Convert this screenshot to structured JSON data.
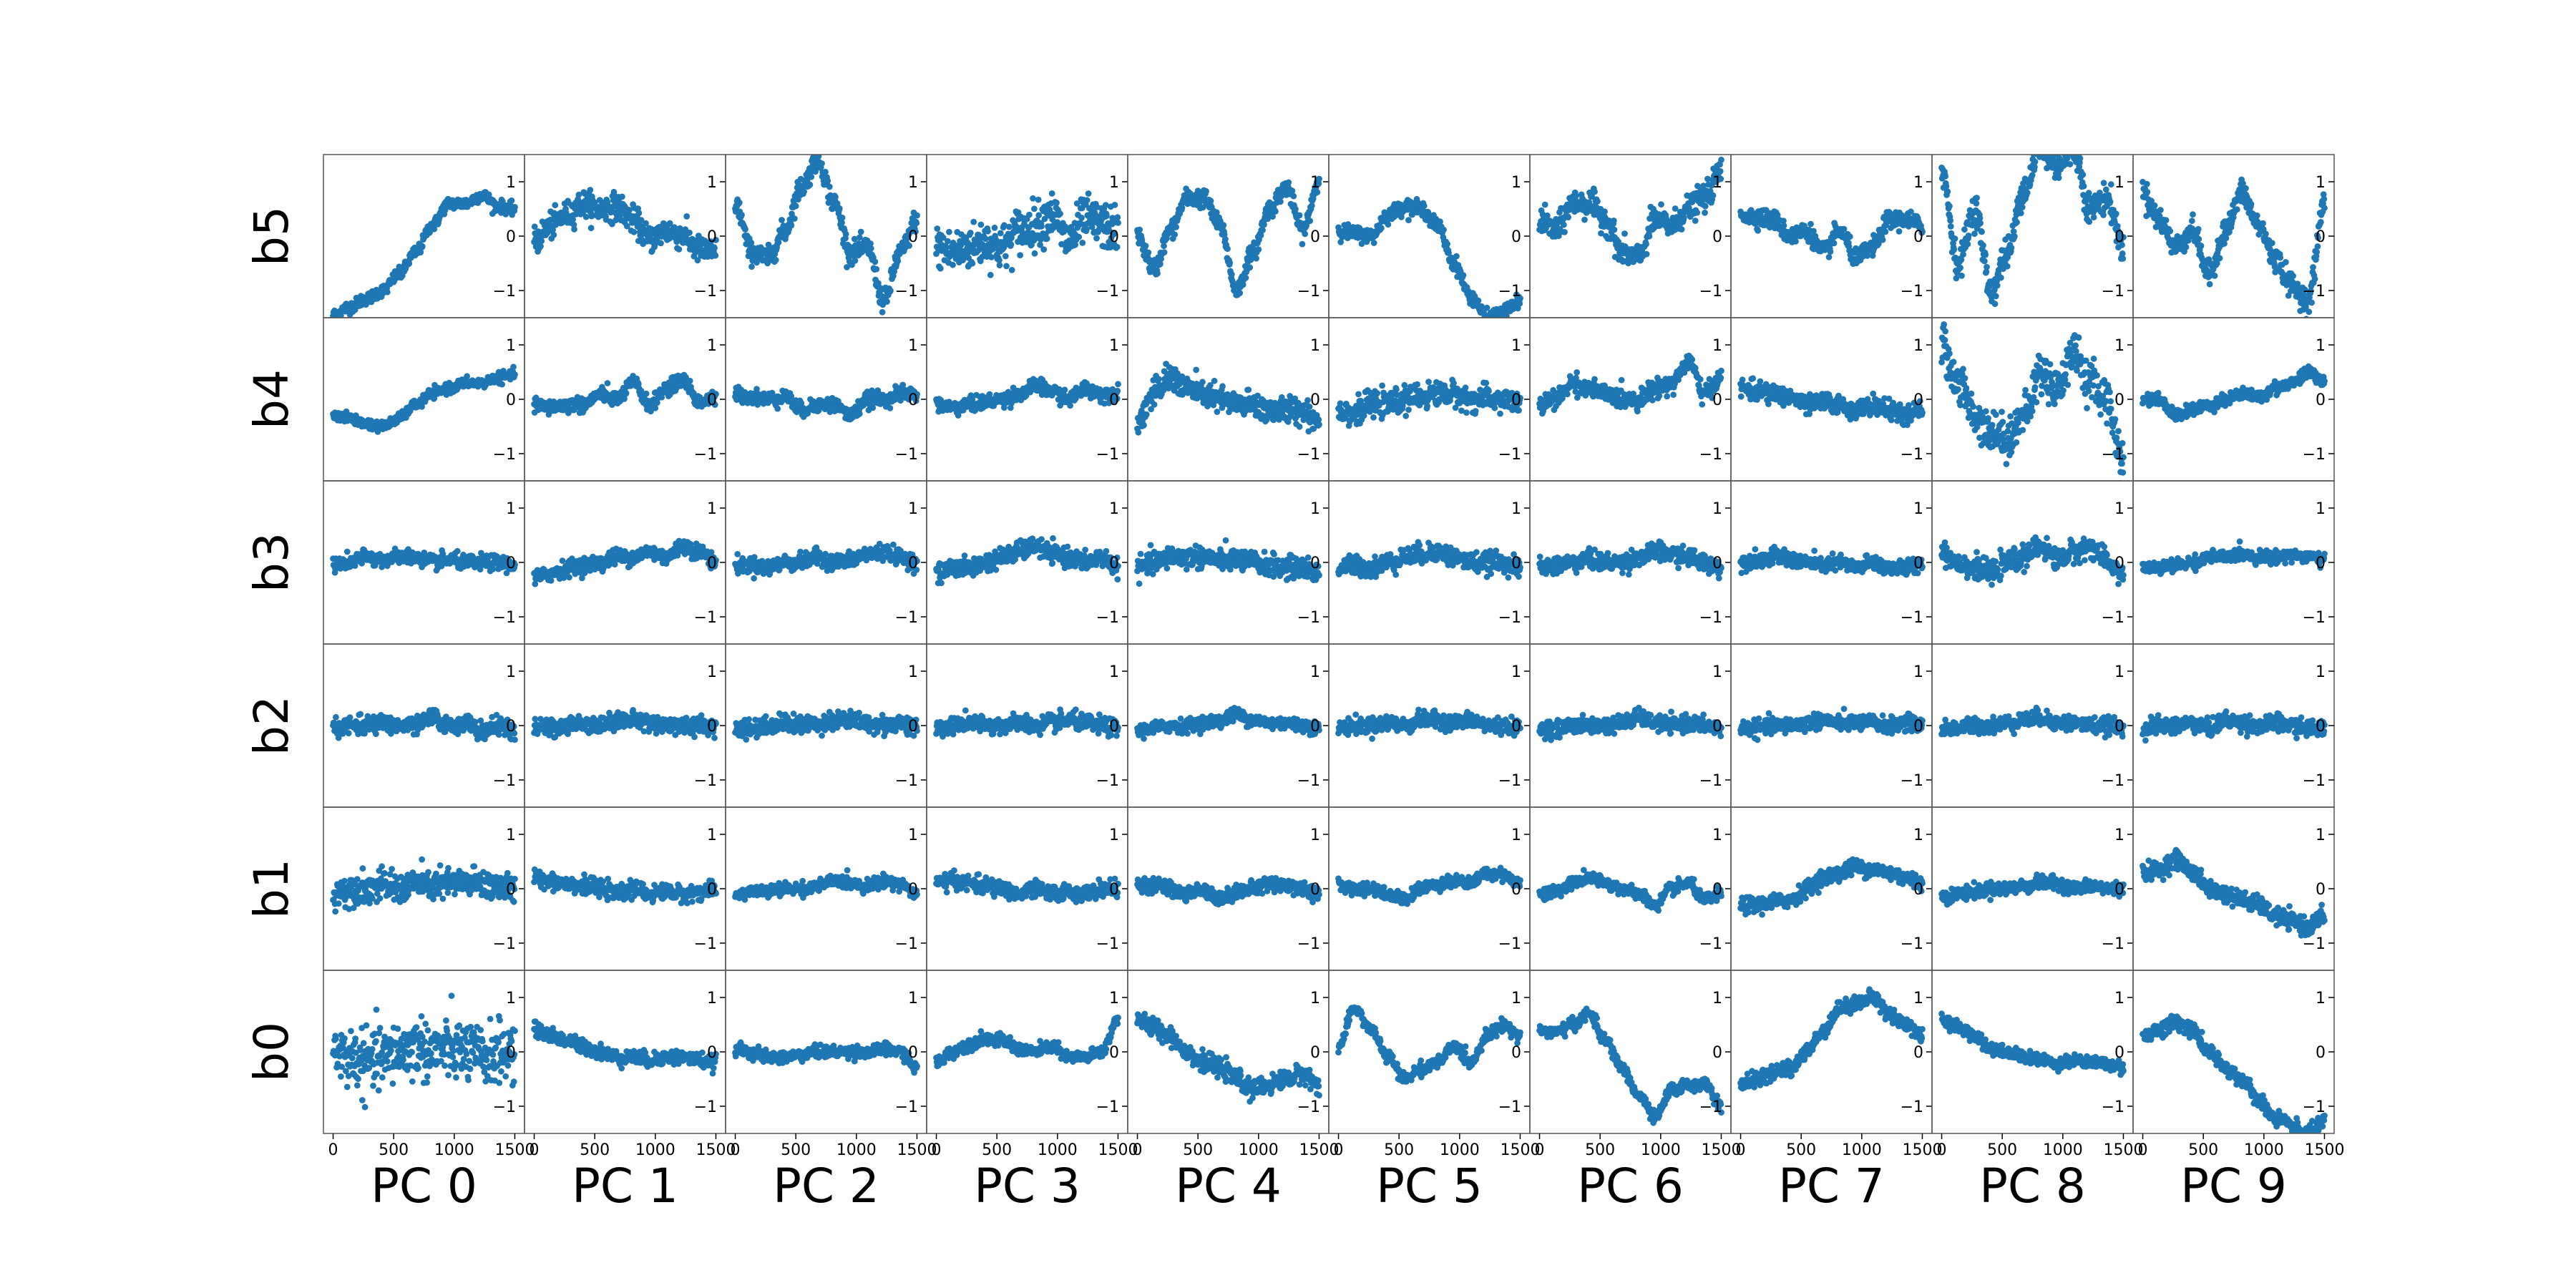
{
  "chart_data": {
    "type": "scatter",
    "layout": "grid of small-multiple scatter plots, 6 rows x 10 columns, shared axes",
    "rows": [
      "b5",
      "b4",
      "b3",
      "b2",
      "b1",
      "b0"
    ],
    "columns": [
      "PC 0",
      "PC 1",
      "PC 2",
      "PC 3",
      "PC 4",
      "PC 5",
      "PC 6",
      "PC 7",
      "PC 8",
      "PC 9"
    ],
    "xlim": [
      -80,
      1580
    ],
    "ylim": [
      -1.5,
      1.5
    ],
    "x_ticks": [
      0,
      500,
      1000,
      1500
    ],
    "x_tick_labels": [
      "0",
      "500",
      "1000",
      "1500"
    ],
    "y_ticks": [
      1,
      0,
      -1
    ],
    "y_tick_labels": [
      "1",
      "0",
      "−1"
    ],
    "points_per_panel": 400,
    "marker_color": "#1f77b4",
    "grid": false,
    "panels_note": "Each panel y(x) is approximated by the trend curves below (sampled at x = 0, 150, 300, ..., 1500) with the given scatter spread.",
    "panels": {
      "b5": [
        {
          "trend": [
            -1.45,
            -1.3,
            -1.15,
            -1.0,
            -0.7,
            -0.3,
            0.2,
            0.6,
            0.6,
            0.75,
            0.55,
            0.5
          ],
          "spread": 0.1
        },
        {
          "trend": [
            -0.1,
            0.2,
            0.4,
            0.6,
            0.5,
            0.55,
            0.3,
            -0.05,
            0.1,
            0.0,
            -0.25,
            -0.3
          ],
          "spread": 0.22
        },
        {
          "trend": [
            0.6,
            -0.3,
            -0.4,
            0.1,
            0.9,
            1.4,
            0.6,
            -0.3,
            -0.2,
            -1.2,
            -0.3,
            0.3
          ],
          "spread": 0.18
        },
        {
          "trend": [
            -0.2,
            -0.3,
            -0.2,
            -0.1,
            -0.2,
            0.1,
            0.2,
            0.4,
            -0.1,
            0.3,
            0.2,
            0.1
          ],
          "spread": 0.38
        },
        {
          "trend": [
            0.0,
            -0.6,
            0.1,
            0.7,
            0.7,
            0.2,
            -1.0,
            -0.3,
            0.5,
            0.9,
            0.1,
            1.0
          ],
          "spread": 0.15
        },
        {
          "trend": [
            0.1,
            0.05,
            0.0,
            0.4,
            0.55,
            0.5,
            0.2,
            -0.5,
            -1.1,
            -1.5,
            -1.4,
            -1.2
          ],
          "spread": 0.12
        },
        {
          "trend": [
            0.3,
            0.1,
            0.6,
            0.6,
            0.3,
            -0.3,
            -0.4,
            0.3,
            0.2,
            0.5,
            0.7,
            1.2
          ],
          "spread": 0.22
        },
        {
          "trend": [
            0.4,
            0.35,
            0.3,
            0.0,
            0.1,
            -0.3,
            0.1,
            -0.4,
            -0.2,
            0.3,
            0.3,
            0.2
          ],
          "spread": 0.15
        },
        {
          "trend": [
            1.2,
            -0.5,
            0.5,
            -1.0,
            -0.3,
            0.9,
            1.6,
            1.3,
            1.6,
            0.5,
            0.7,
            -0.2
          ],
          "spread": 0.25
        },
        {
          "trend": [
            0.8,
            0.3,
            -0.2,
            0.1,
            -0.7,
            0.1,
            0.8,
            0.2,
            -0.4,
            -0.9,
            -1.2,
            0.6
          ],
          "spread": 0.2
        }
      ],
      "b4": [
        {
          "trend": [
            -0.3,
            -0.35,
            -0.45,
            -0.5,
            -0.35,
            -0.1,
            0.1,
            0.2,
            0.3,
            0.3,
            0.4,
            0.45
          ],
          "spread": 0.08
        },
        {
          "trend": [
            -0.1,
            -0.15,
            -0.1,
            -0.1,
            0.1,
            0.0,
            0.3,
            -0.1,
            0.2,
            0.35,
            -0.05,
            0.0
          ],
          "spread": 0.12
        },
        {
          "trend": [
            0.1,
            0.05,
            0.0,
            0.05,
            -0.2,
            -0.1,
            -0.1,
            -0.3,
            0.0,
            0.0,
            0.1,
            0.1
          ],
          "spread": 0.12
        },
        {
          "trend": [
            -0.1,
            -0.15,
            -0.1,
            -0.05,
            0.0,
            0.1,
            0.25,
            0.15,
            0.0,
            0.2,
            0.1,
            0.1
          ],
          "spread": 0.12
        },
        {
          "trend": [
            -0.4,
            0.1,
            0.4,
            0.2,
            0.1,
            0.0,
            -0.1,
            -0.1,
            -0.2,
            -0.2,
            -0.2,
            -0.4
          ],
          "spread": 0.22
        },
        {
          "trend": [
            -0.2,
            -0.25,
            -0.1,
            -0.1,
            0.0,
            0.05,
            0.1,
            0.1,
            0.0,
            0.0,
            0.0,
            -0.1
          ],
          "spread": 0.2
        },
        {
          "trend": [
            -0.1,
            0.0,
            0.3,
            0.2,
            0.1,
            0.0,
            0.0,
            0.2,
            0.3,
            0.7,
            0.1,
            0.4
          ],
          "spread": 0.15
        },
        {
          "trend": [
            0.2,
            0.15,
            0.1,
            0.05,
            -0.1,
            -0.05,
            -0.1,
            -0.2,
            -0.1,
            -0.2,
            -0.3,
            -0.2
          ],
          "spread": 0.15
        },
        {
          "trend": [
            1.0,
            0.3,
            -0.3,
            -0.6,
            -0.7,
            -0.3,
            0.5,
            0.2,
            0.9,
            0.3,
            0.0,
            -1.2
          ],
          "spread": 0.35
        },
        {
          "trend": [
            0.0,
            0.0,
            -0.3,
            -0.2,
            -0.1,
            0.0,
            0.1,
            0.05,
            0.2,
            0.3,
            0.5,
            0.35
          ],
          "spread": 0.1
        }
      ],
      "b3": [
        {
          "trend": [
            -0.05,
            0.0,
            0.1,
            0.05,
            0.1,
            0.1,
            0.0,
            0.05,
            0.0,
            0.0,
            0.0,
            -0.05
          ],
          "spread": 0.12
        },
        {
          "trend": [
            -0.3,
            -0.2,
            -0.1,
            -0.05,
            0.0,
            0.1,
            0.1,
            0.2,
            0.1,
            0.3,
            0.2,
            0.0
          ],
          "spread": 0.13
        },
        {
          "trend": [
            -0.05,
            -0.05,
            -0.1,
            0.0,
            0.0,
            0.1,
            0.0,
            0.05,
            0.15,
            0.2,
            0.1,
            0.0
          ],
          "spread": 0.13
        },
        {
          "trend": [
            -0.2,
            -0.1,
            -0.1,
            0.0,
            0.1,
            0.2,
            0.3,
            0.15,
            0.1,
            0.0,
            0.1,
            -0.1
          ],
          "spread": 0.15
        },
        {
          "trend": [
            -0.1,
            0.0,
            0.1,
            0.1,
            0.1,
            0.05,
            0.05,
            0.0,
            -0.05,
            -0.1,
            -0.1,
            -0.2
          ],
          "spread": 0.18
        },
        {
          "trend": [
            -0.1,
            -0.05,
            -0.1,
            0.0,
            0.1,
            0.15,
            0.2,
            0.1,
            0.0,
            0.0,
            0.0,
            -0.1
          ],
          "spread": 0.16
        },
        {
          "trend": [
            -0.1,
            -0.05,
            0.0,
            0.05,
            0.0,
            0.0,
            0.1,
            0.2,
            0.15,
            0.1,
            0.0,
            -0.1
          ],
          "spread": 0.15
        },
        {
          "trend": [
            0.0,
            0.05,
            0.1,
            0.05,
            0.0,
            -0.05,
            0.0,
            -0.1,
            0.0,
            -0.1,
            -0.1,
            0.0
          ],
          "spread": 0.13
        },
        {
          "trend": [
            0.2,
            0.0,
            -0.1,
            -0.2,
            0.0,
            0.1,
            0.3,
            0.05,
            0.2,
            0.3,
            0.0,
            -0.2
          ],
          "spread": 0.18
        },
        {
          "trend": [
            -0.1,
            -0.1,
            -0.05,
            0.0,
            0.1,
            0.1,
            0.15,
            0.1,
            0.1,
            0.15,
            0.1,
            0.05
          ],
          "spread": 0.1
        }
      ],
      "b2": [
        {
          "trend": [
            -0.05,
            0.0,
            0.0,
            0.05,
            0.0,
            0.0,
            0.15,
            0.0,
            0.05,
            -0.1,
            0.0,
            -0.1
          ],
          "spread": 0.14
        },
        {
          "trend": [
            -0.05,
            -0.05,
            0.0,
            0.05,
            0.0,
            0.1,
            0.1,
            0.05,
            0.0,
            0.0,
            0.0,
            -0.05
          ],
          "spread": 0.14
        },
        {
          "trend": [
            -0.05,
            -0.05,
            0.0,
            0.05,
            0.0,
            0.05,
            0.1,
            0.1,
            0.05,
            0.0,
            0.05,
            -0.05
          ],
          "spread": 0.15
        },
        {
          "trend": [
            -0.05,
            0.0,
            0.05,
            0.0,
            0.0,
            0.05,
            0.0,
            0.05,
            0.1,
            0.05,
            0.0,
            -0.05
          ],
          "spread": 0.14
        },
        {
          "trend": [
            -0.1,
            -0.05,
            0.0,
            0.0,
            0.05,
            0.1,
            0.2,
            0.1,
            0.05,
            0.05,
            0.0,
            -0.05
          ],
          "spread": 0.11
        },
        {
          "trend": [
            -0.05,
            0.0,
            0.0,
            0.05,
            0.0,
            0.1,
            0.1,
            0.05,
            0.1,
            0.0,
            0.0,
            -0.05
          ],
          "spread": 0.13
        },
        {
          "trend": [
            -0.05,
            -0.05,
            0.0,
            0.0,
            0.0,
            0.05,
            0.15,
            0.05,
            0.0,
            0.05,
            0.0,
            -0.05
          ],
          "spread": 0.13
        },
        {
          "trend": [
            -0.05,
            -0.05,
            0.0,
            0.0,
            0.05,
            0.1,
            0.05,
            0.05,
            0.05,
            0.0,
            0.05,
            0.0
          ],
          "spread": 0.13
        },
        {
          "trend": [
            -0.05,
            -0.05,
            0.0,
            0.0,
            0.05,
            0.1,
            0.15,
            0.05,
            0.05,
            0.0,
            0.0,
            -0.05
          ],
          "spread": 0.13
        },
        {
          "trend": [
            -0.05,
            0.0,
            0.0,
            0.05,
            -0.05,
            0.1,
            0.05,
            0.0,
            0.05,
            0.0,
            -0.05,
            -0.05
          ],
          "spread": 0.14
        }
      ],
      "b1": [
        {
          "trend": [
            -0.1,
            0.0,
            0.0,
            0.05,
            0.0,
            0.1,
            0.05,
            0.1,
            0.1,
            0.1,
            0.05,
            0.0
          ],
          "spread": 0.25
        },
        {
          "trend": [
            0.2,
            0.15,
            0.1,
            0.05,
            0.0,
            -0.1,
            0.0,
            -0.1,
            -0.05,
            -0.1,
            -0.05,
            -0.05
          ],
          "spread": 0.13
        },
        {
          "trend": [
            -0.1,
            -0.05,
            -0.05,
            0.0,
            0.0,
            0.05,
            0.15,
            0.1,
            0.05,
            0.15,
            0.1,
            -0.1
          ],
          "spread": 0.1
        },
        {
          "trend": [
            0.1,
            0.15,
            0.1,
            0.05,
            0.0,
            -0.1,
            0.0,
            -0.1,
            -0.05,
            -0.1,
            0.0,
            0.0
          ],
          "spread": 0.13
        },
        {
          "trend": [
            0.05,
            0.05,
            0.0,
            -0.1,
            0.0,
            -0.2,
            -0.05,
            0.0,
            0.1,
            0.05,
            0.0,
            -0.1
          ],
          "spread": 0.12
        },
        {
          "trend": [
            0.05,
            0.0,
            0.0,
            -0.1,
            -0.2,
            0.0,
            0.1,
            0.15,
            0.1,
            0.3,
            0.25,
            0.1
          ],
          "spread": 0.1
        },
        {
          "trend": [
            -0.1,
            -0.05,
            0.1,
            0.2,
            0.1,
            0.0,
            -0.1,
            -0.3,
            0.0,
            0.1,
            -0.2,
            -0.1
          ],
          "spread": 0.1
        },
        {
          "trend": [
            -0.3,
            -0.3,
            -0.25,
            -0.2,
            0.0,
            0.2,
            0.3,
            0.4,
            0.35,
            0.3,
            0.2,
            0.1
          ],
          "spread": 0.13
        },
        {
          "trend": [
            -0.15,
            -0.1,
            -0.05,
            0.0,
            0.0,
            0.05,
            0.1,
            0.1,
            0.0,
            0.05,
            0.0,
            0.0
          ],
          "spread": 0.11
        },
        {
          "trend": [
            0.3,
            0.35,
            0.55,
            0.3,
            0.0,
            -0.1,
            -0.2,
            -0.3,
            -0.5,
            -0.6,
            -0.7,
            -0.5
          ],
          "spread": 0.14
        }
      ],
      "b0": [
        {
          "trend": [
            0.0,
            -0.1,
            -0.2,
            -0.1,
            0.0,
            0.1,
            0.0,
            0.05,
            0.0,
            -0.1,
            0.0,
            0.0
          ],
          "spread": 0.5
        },
        {
          "trend": [
            0.4,
            0.3,
            0.2,
            0.1,
            0.0,
            -0.1,
            -0.1,
            -0.15,
            -0.1,
            -0.1,
            -0.15,
            -0.2
          ],
          "spread": 0.12
        },
        {
          "trend": [
            0.05,
            0.0,
            -0.1,
            -0.1,
            -0.05,
            0.0,
            0.0,
            0.0,
            0.0,
            0.05,
            0.0,
            -0.3
          ],
          "spread": 0.1
        },
        {
          "trend": [
            -0.2,
            0.0,
            0.15,
            0.25,
            0.2,
            0.05,
            0.0,
            0.1,
            -0.1,
            -0.1,
            0.0,
            0.6
          ],
          "spread": 0.1
        },
        {
          "trend": [
            0.6,
            0.45,
            0.3,
            0.0,
            -0.2,
            -0.3,
            -0.5,
            -0.7,
            -0.6,
            -0.5,
            -0.4,
            -0.6
          ],
          "spread": 0.15
        },
        {
          "trend": [
            0.1,
            0.8,
            0.4,
            -0.1,
            -0.5,
            -0.3,
            -0.2,
            0.1,
            -0.2,
            0.3,
            0.5,
            0.3
          ],
          "spread": 0.1
        },
        {
          "trend": [
            0.4,
            0.35,
            0.5,
            0.7,
            0.2,
            -0.3,
            -0.8,
            -1.2,
            -0.7,
            -0.6,
            -0.6,
            -1.0
          ],
          "spread": 0.1
        },
        {
          "trend": [
            -0.6,
            -0.5,
            -0.4,
            -0.3,
            0.0,
            0.4,
            0.8,
            0.9,
            1.0,
            0.7,
            0.5,
            0.3
          ],
          "spread": 0.12
        },
        {
          "trend": [
            0.6,
            0.45,
            0.3,
            0.05,
            0.0,
            -0.1,
            -0.15,
            -0.2,
            -0.15,
            -0.2,
            -0.2,
            -0.3
          ],
          "spread": 0.1
        },
        {
          "trend": [
            0.3,
            0.4,
            0.55,
            0.4,
            0.0,
            -0.3,
            -0.5,
            -0.9,
            -1.2,
            -1.4,
            -1.5,
            -1.3
          ],
          "spread": 0.13
        }
      ]
    }
  }
}
